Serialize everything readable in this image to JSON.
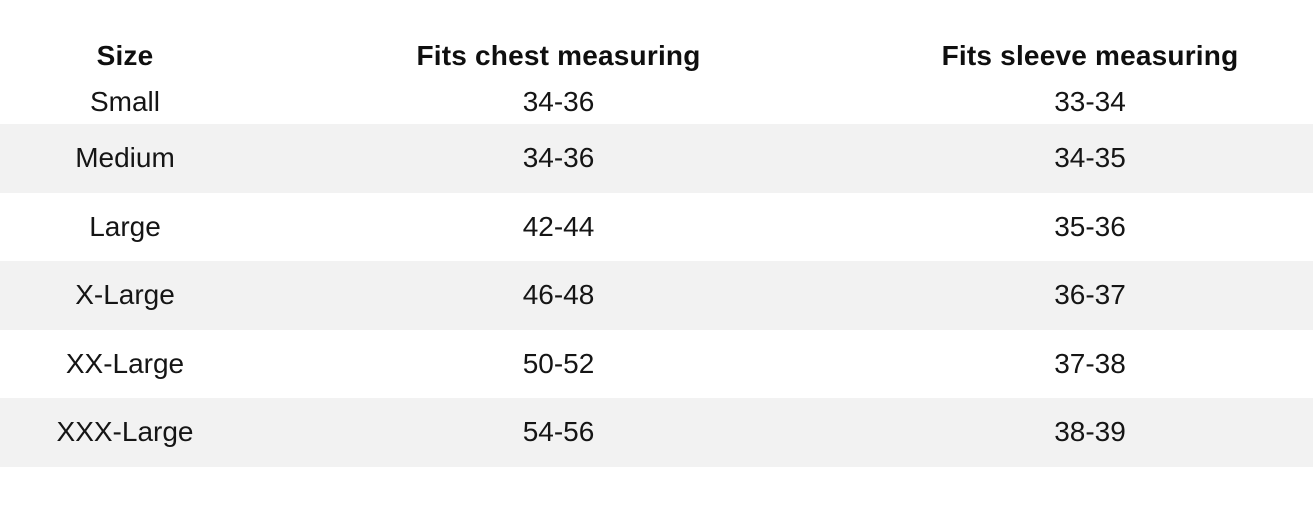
{
  "table": {
    "headers": [
      "Size",
      "Fits chest measuring",
      "Fits sleeve measuring"
    ],
    "rows": [
      [
        "Small",
        "34-36",
        "33-34"
      ],
      [
        "Medium",
        "34-36",
        "34-35"
      ],
      [
        "Large",
        "42-44",
        "35-36"
      ],
      [
        "X-Large",
        "46-48",
        "36-37"
      ],
      [
        "XX-Large",
        "50-52",
        "37-38"
      ],
      [
        "XXX-Large",
        "54-56",
        "38-39"
      ]
    ]
  },
  "colors": {
    "alt_row_background": "#f2f2f2",
    "page_background": "#ffffff",
    "text": "#111111"
  }
}
